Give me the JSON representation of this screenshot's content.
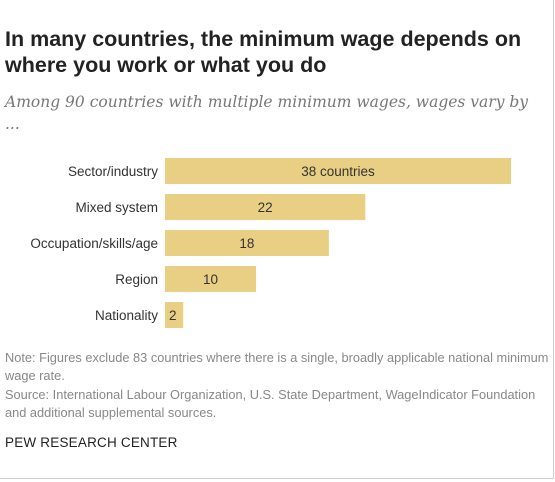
{
  "chart_data": {
    "type": "bar",
    "orientation": "horizontal",
    "title": "In many countries, the minimum wage depends on where you work or what you do",
    "subtitle": "Among 90 countries with multiple minimum wages, wages vary by ...",
    "categories": [
      "Sector/industry",
      "Mixed system",
      "Occupation/skills/age",
      "Region",
      "Nationality"
    ],
    "values": [
      38,
      22,
      18,
      10,
      2
    ],
    "value_labels": [
      "38 countries",
      "22",
      "18",
      "10",
      "2"
    ],
    "xlim": [
      0,
      38
    ],
    "grid": false,
    "bar_color": "#e8cf83"
  },
  "note": "Note: Figures exclude 83 countries where there is a single, broadly applicable national minimum wage rate.",
  "source": "Source: International Labour Organization, U.S. State Department, WageIndicator Foundation and additional supplemental sources.",
  "brand": "PEW RESEARCH CENTER"
}
